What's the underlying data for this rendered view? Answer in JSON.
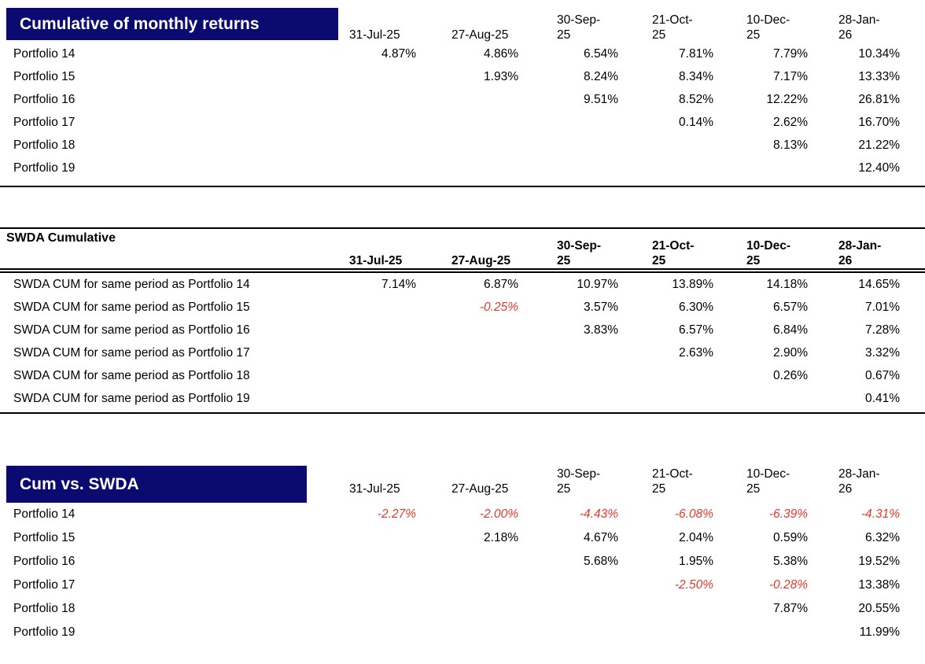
{
  "colors": {
    "title_band_background": "#0a0a70",
    "title_band_text": "#ffffff",
    "negative_value": "#e8392b",
    "text": "#000000"
  },
  "columns": [
    "31-Jul-25",
    "27-Aug-25",
    "30-Sep-25",
    "21-Oct-25",
    "10-Dec-25",
    "28-Jan-26"
  ],
  "tables": [
    {
      "title": "Cumulative of monthly returns",
      "title_style": "navy-band",
      "rows": [
        {
          "label": "Portfolio 14",
          "values": [
            "4.87%",
            "4.86%",
            "6.54%",
            "7.81%",
            "7.79%",
            "10.34%"
          ]
        },
        {
          "label": "Portfolio 15",
          "values": [
            "",
            "1.93%",
            "8.24%",
            "8.34%",
            "7.17%",
            "13.33%"
          ]
        },
        {
          "label": "Portfolio 16",
          "values": [
            "",
            "",
            "9.51%",
            "8.52%",
            "12.22%",
            "26.81%"
          ]
        },
        {
          "label": "Portfolio 17",
          "values": [
            "",
            "",
            "",
            "0.14%",
            "2.62%",
            "16.70%"
          ]
        },
        {
          "label": "Portfolio 18",
          "values": [
            "",
            "",
            "",
            "",
            "8.13%",
            "21.22%"
          ]
        },
        {
          "label": "Portfolio 19",
          "values": [
            "",
            "",
            "",
            "",
            "",
            "12.40%"
          ]
        }
      ]
    },
    {
      "title": "SWDA Cumulative",
      "title_style": "bold-plain",
      "rows": [
        {
          "label": "SWDA CUM for same period as Portfolio 14",
          "values": [
            "7.14%",
            "6.87%",
            "10.97%",
            "13.89%",
            "14.18%",
            "14.65%"
          ]
        },
        {
          "label": "SWDA CUM for same period as Portfolio 15",
          "values": [
            "",
            "-0.25%",
            "3.57%",
            "6.30%",
            "6.57%",
            "7.01%"
          ]
        },
        {
          "label": "SWDA CUM for same period as Portfolio 16",
          "values": [
            "",
            "",
            "3.83%",
            "6.57%",
            "6.84%",
            "7.28%"
          ]
        },
        {
          "label": "SWDA CUM for same period as Portfolio 17",
          "values": [
            "",
            "",
            "",
            "2.63%",
            "2.90%",
            "3.32%"
          ]
        },
        {
          "label": "SWDA CUM for same period as Portfolio 18",
          "values": [
            "",
            "",
            "",
            "",
            "0.26%",
            "0.67%"
          ]
        },
        {
          "label": "SWDA CUM for same period as Portfolio 19",
          "values": [
            "",
            "",
            "",
            "",
            "",
            "0.41%"
          ]
        }
      ]
    },
    {
      "title": "Cum vs. SWDA",
      "title_style": "navy-band",
      "rows": [
        {
          "label": "Portfolio 14",
          "values": [
            "-2.27%",
            "-2.00%",
            "-4.43%",
            "-6.08%",
            "-6.39%",
            "-4.31%"
          ]
        },
        {
          "label": "Portfolio 15",
          "values": [
            "",
            "2.18%",
            "4.67%",
            "2.04%",
            "0.59%",
            "6.32%"
          ]
        },
        {
          "label": "Portfolio 16",
          "values": [
            "",
            "",
            "5.68%",
            "1.95%",
            "5.38%",
            "19.52%"
          ]
        },
        {
          "label": "Portfolio 17",
          "values": [
            "",
            "",
            "",
            "-2.50%",
            "-0.28%",
            "13.38%"
          ]
        },
        {
          "label": "Portfolio 18",
          "values": [
            "",
            "",
            "",
            "",
            "7.87%",
            "20.55%"
          ]
        },
        {
          "label": "Portfolio 19",
          "values": [
            "",
            "",
            "",
            "",
            "",
            "11.99%"
          ]
        }
      ]
    }
  ]
}
